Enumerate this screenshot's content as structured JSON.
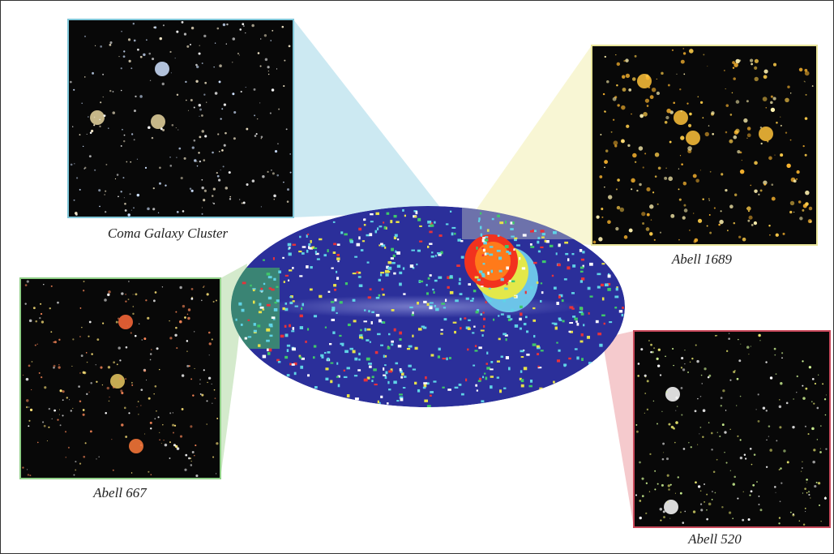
{
  "panels": [
    {
      "label": "Coma Galaxy Cluster"
    },
    {
      "label": "Abell 1689"
    },
    {
      "label": "Abell 667"
    },
    {
      "label": "Abell 520"
    }
  ]
}
